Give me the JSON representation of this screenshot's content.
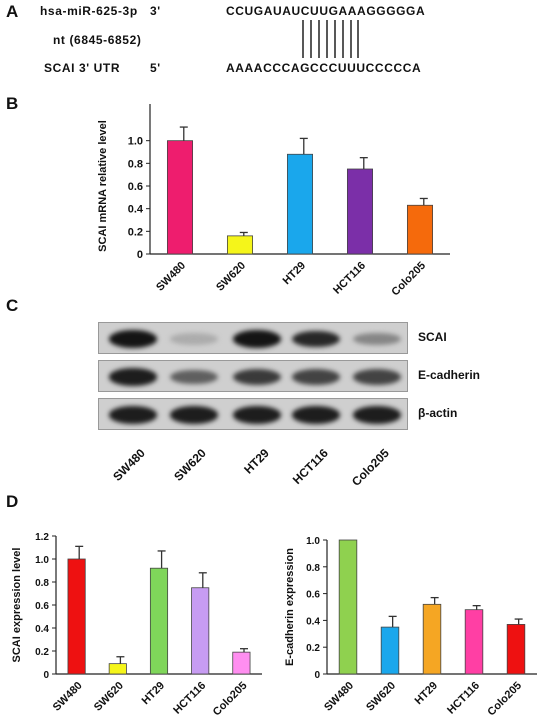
{
  "panels": {
    "a": "A",
    "b": "B",
    "c": "C",
    "d": "D"
  },
  "panel_a": {
    "mirna_label": "hsa-miR-625-3p",
    "mirna_end": "3'",
    "mirna_seq": "CCUGAUAUCUUGAAAGGGGGA",
    "nt_label": "nt (6845-6852)",
    "utr_label": "SCAI 3' UTR",
    "utr_end": "5'",
    "utr_seq": "AAAACCCAGCCCUUUCCCCCA"
  },
  "panel_c": {
    "lanes": [
      "SW480",
      "SW620",
      "HT29",
      "HCT116",
      "Colo205"
    ],
    "rows": [
      {
        "name": "SCAI",
        "intensity": [
          0.95,
          0.15,
          0.95,
          0.85,
          0.35
        ]
      },
      {
        "name": "E-cadherin",
        "intensity": [
          0.9,
          0.55,
          0.75,
          0.7,
          0.7
        ]
      },
      {
        "name": "β-actin",
        "intensity": [
          0.9,
          0.9,
          0.9,
          0.9,
          0.9
        ]
      }
    ]
  },
  "chart_data": [
    {
      "id": "B",
      "type": "bar",
      "categories": [
        "SW480",
        "SW620",
        "HT29",
        "HCT116",
        "Colo205"
      ],
      "values": [
        1.0,
        0.16,
        0.88,
        0.75,
        0.43
      ],
      "errors": [
        0.12,
        0.03,
        0.14,
        0.1,
        0.06
      ],
      "colors": [
        "#ee1d6e",
        "#f5f51a",
        "#1aa7ec",
        "#7b2fa8",
        "#f56a0c"
      ],
      "ylabel": "SCAI mRNA relative level",
      "ylim": [
        0,
        1.2
      ],
      "yticks": [
        0,
        0.2,
        0.4,
        0.6,
        0.8,
        1.0
      ],
      "ytick_labels": [
        "0",
        "0.2",
        "0.4",
        "0.6",
        "0.8",
        "1.0"
      ]
    },
    {
      "id": "D1",
      "type": "bar",
      "categories": [
        "SW480",
        "SW620",
        "HT29",
        "HCT116",
        "Colo205"
      ],
      "values": [
        1.0,
        0.09,
        0.92,
        0.75,
        0.19
      ],
      "errors": [
        0.11,
        0.06,
        0.15,
        0.13,
        0.03
      ],
      "colors": [
        "#ee1111",
        "#f5f51a",
        "#7fd65a",
        "#c79cf2",
        "#ff8ef0"
      ],
      "ylabel": "SCAI expression level",
      "ylim": [
        0,
        1.2
      ],
      "yticks": [
        0,
        0.2,
        0.4,
        0.6,
        0.8,
        1.0,
        1.2
      ],
      "ytick_labels": [
        "0",
        "0.2",
        "0.4",
        "0.6",
        "0.8",
        "1.0",
        "1.2"
      ]
    },
    {
      "id": "D2",
      "type": "bar",
      "categories": [
        "SW480",
        "SW620",
        "HT29",
        "HCT116",
        "Colo205"
      ],
      "values": [
        1.0,
        0.35,
        0.52,
        0.48,
        0.37
      ],
      "errors": [
        0.0,
        0.08,
        0.05,
        0.03,
        0.04
      ],
      "colors": [
        "#8fd14f",
        "#1aa7ec",
        "#f5a623",
        "#ff3fa4",
        "#ee1111"
      ],
      "ylabel": "E-cadherin expression",
      "ylim": [
        0,
        1.0
      ],
      "yticks": [
        0,
        0.2,
        0.4,
        0.6,
        0.8,
        1.0
      ],
      "ytick_labels": [
        "0",
        "0.2",
        "0.4",
        "0.6",
        "0.8",
        "1.0"
      ]
    }
  ]
}
